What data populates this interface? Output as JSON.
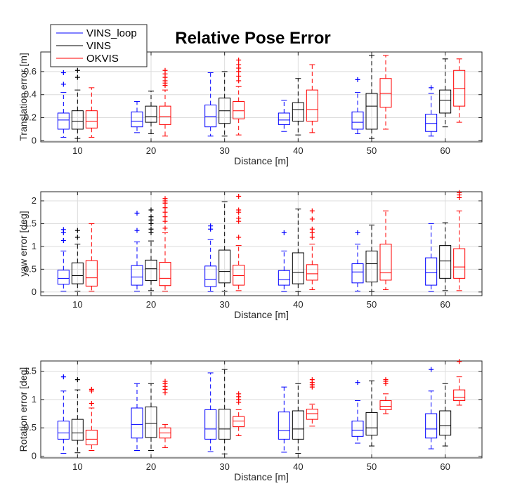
{
  "title": "Relative Pose Error",
  "colors": {
    "VINS_loop": "#0000ff",
    "VINS": "#000000",
    "OKVIS": "#ff0000"
  },
  "legend": [
    "VINS_loop",
    "VINS",
    "OKVIS"
  ],
  "chart_data": [
    {
      "type": "box",
      "ylabel": "Translation error [m]",
      "xlabel": "Distance [m]",
      "categories": [
        "10",
        "20",
        "30",
        "40",
        "50",
        "60"
      ],
      "ylim": [
        -0.01,
        0.77
      ],
      "yticks": [
        0,
        0.2,
        0.4,
        0.6
      ],
      "ytick_labels": [
        "0",
        "0.2",
        "0.4",
        "0.6"
      ],
      "series": [
        {
          "name": "VINS_loop",
          "boxes": [
            {
              "wlo": 0.03,
              "q1": 0.1,
              "med": 0.18,
              "q3": 0.24,
              "whi": 0.42,
              "out": [
                0.49,
                0.59
              ]
            },
            {
              "wlo": 0.07,
              "q1": 0.12,
              "med": 0.17,
              "q3": 0.25,
              "whi": 0.34,
              "out": []
            },
            {
              "wlo": 0.04,
              "q1": 0.12,
              "med": 0.21,
              "q3": 0.31,
              "whi": 0.59,
              "out": []
            },
            {
              "wlo": 0.08,
              "q1": 0.14,
              "med": 0.18,
              "q3": 0.24,
              "whi": 0.35,
              "out": []
            },
            {
              "wlo": 0.06,
              "q1": 0.1,
              "med": 0.16,
              "q3": 0.25,
              "whi": 0.42,
              "out": [
                0.53
              ]
            },
            {
              "wlo": 0.04,
              "q1": 0.08,
              "med": 0.15,
              "q3": 0.23,
              "whi": 0.41,
              "out": [
                0.46
              ]
            }
          ]
        },
        {
          "name": "VINS",
          "boxes": [
            {
              "wlo": 0.02,
              "q1": 0.1,
              "med": 0.17,
              "q3": 0.26,
              "whi": 0.44,
              "out": [
                0.55,
                0.61
              ]
            },
            {
              "wlo": 0.06,
              "q1": 0.16,
              "med": 0.21,
              "q3": 0.3,
              "whi": 0.43,
              "out": []
            },
            {
              "wlo": 0.04,
              "q1": 0.15,
              "med": 0.26,
              "q3": 0.37,
              "whi": 0.6,
              "out": []
            },
            {
              "wlo": 0.05,
              "q1": 0.17,
              "med": 0.27,
              "q3": 0.33,
              "whi": 0.54,
              "out": []
            },
            {
              "wlo": 0.02,
              "q1": 0.1,
              "med": 0.3,
              "q3": 0.41,
              "whi": 0.74,
              "out": []
            },
            {
              "wlo": 0.12,
              "q1": 0.24,
              "med": 0.35,
              "q3": 0.44,
              "whi": 0.71,
              "out": []
            }
          ]
        },
        {
          "name": "OKVIS",
          "boxes": [
            {
              "wlo": 0.03,
              "q1": 0.11,
              "med": 0.17,
              "q3": 0.26,
              "whi": 0.46,
              "out": []
            },
            {
              "wlo": 0.04,
              "q1": 0.14,
              "med": 0.21,
              "q3": 0.3,
              "whi": 0.44,
              "out": [
                0.48,
                0.5,
                0.52,
                0.55,
                0.58,
                0.61
              ]
            },
            {
              "wlo": 0.05,
              "q1": 0.19,
              "med": 0.26,
              "q3": 0.34,
              "whi": 0.47,
              "out": [
                0.52,
                0.56,
                0.6,
                0.63,
                0.66,
                0.7
              ]
            },
            {
              "wlo": 0.07,
              "q1": 0.17,
              "med": 0.27,
              "q3": 0.44,
              "whi": 0.66,
              "out": []
            },
            {
              "wlo": 0.1,
              "q1": 0.29,
              "med": 0.41,
              "q3": 0.54,
              "whi": 0.74,
              "out": []
            },
            {
              "wlo": 0.16,
              "q1": 0.3,
              "med": 0.45,
              "q3": 0.61,
              "whi": 0.71,
              "out": []
            }
          ]
        }
      ]
    },
    {
      "type": "box",
      "ylabel": "yaw error [deg]",
      "xlabel": "Distance [m]",
      "categories": [
        "10",
        "20",
        "30",
        "40",
        "50",
        "60"
      ],
      "ylim": [
        -0.08,
        2.2
      ],
      "yticks": [
        0,
        0.5,
        1,
        1.5,
        2
      ],
      "ytick_labels": [
        "0",
        "0.5",
        "1",
        "1.5",
        "2"
      ],
      "series": [
        {
          "name": "VINS_loop",
          "boxes": [
            {
              "wlo": 0.02,
              "q1": 0.17,
              "med": 0.3,
              "q3": 0.48,
              "whi": 0.9,
              "out": [
                1.13,
                1.3,
                1.37
              ]
            },
            {
              "wlo": 0.02,
              "q1": 0.15,
              "med": 0.33,
              "q3": 0.58,
              "whi": 1.1,
              "out": [
                1.35,
                1.73
              ]
            },
            {
              "wlo": 0.01,
              "q1": 0.12,
              "med": 0.28,
              "q3": 0.57,
              "whi": 1.15,
              "out": [
                1.38,
                1.45
              ]
            },
            {
              "wlo": 0.01,
              "q1": 0.15,
              "med": 0.27,
              "q3": 0.47,
              "whi": 0.9,
              "out": [
                1.3
              ]
            },
            {
              "wlo": 0.02,
              "q1": 0.2,
              "med": 0.44,
              "q3": 0.62,
              "whi": 1.05,
              "out": [
                1.3
              ]
            },
            {
              "wlo": 0.01,
              "q1": 0.15,
              "med": 0.42,
              "q3": 0.75,
              "whi": 1.5,
              "out": []
            }
          ]
        },
        {
          "name": "VINS",
          "boxes": [
            {
              "wlo": 0.02,
              "q1": 0.18,
              "med": 0.36,
              "q3": 0.64,
              "whi": 1.05,
              "out": [
                1.2,
                1.35
              ]
            },
            {
              "wlo": 0.03,
              "q1": 0.25,
              "med": 0.51,
              "q3": 0.7,
              "whi": 1.12,
              "out": [
                1.3,
                1.38,
                1.5,
                1.58,
                1.65,
                1.8
              ]
            },
            {
              "wlo": 0.02,
              "q1": 0.2,
              "med": 0.45,
              "q3": 0.92,
              "whi": 1.98,
              "out": []
            },
            {
              "wlo": 0.01,
              "q1": 0.18,
              "med": 0.43,
              "q3": 0.86,
              "whi": 1.82,
              "out": []
            },
            {
              "wlo": 0.01,
              "q1": 0.22,
              "med": 0.62,
              "q3": 0.9,
              "whi": 1.47,
              "out": []
            },
            {
              "wlo": 0.03,
              "q1": 0.3,
              "med": 0.68,
              "q3": 1.02,
              "whi": 1.52,
              "out": []
            }
          ]
        },
        {
          "name": "OKVIS",
          "boxes": [
            {
              "wlo": 0.02,
              "q1": 0.13,
              "med": 0.31,
              "q3": 0.69,
              "whi": 1.5,
              "out": []
            },
            {
              "wlo": 0.02,
              "q1": 0.14,
              "med": 0.3,
              "q3": 0.65,
              "whi": 1.3,
              "out": [
                1.4,
                1.55,
                1.65,
                1.75,
                1.85,
                1.95,
                2.0,
                2.05
              ]
            },
            {
              "wlo": 0.03,
              "q1": 0.15,
              "med": 0.36,
              "q3": 0.59,
              "whi": 1.02,
              "out": [
                1.2,
                1.55,
                1.62,
                1.75,
                1.8,
                2.1
              ]
            },
            {
              "wlo": 0.05,
              "q1": 0.26,
              "med": 0.4,
              "q3": 0.6,
              "whi": 1.05,
              "out": [
                1.2,
                1.3,
                1.38,
                1.6,
                1.78
              ]
            },
            {
              "wlo": 0.05,
              "q1": 0.26,
              "med": 0.42,
              "q3": 1.05,
              "whi": 1.78,
              "out": []
            },
            {
              "wlo": 0.03,
              "q1": 0.3,
              "med": 0.55,
              "q3": 0.95,
              "whi": 1.78,
              "out": [
                2.07,
                2.13,
                2.18
              ]
            }
          ]
        }
      ]
    },
    {
      "type": "box",
      "ylabel": "Rotation error [deg]",
      "xlabel": "Distance [m]",
      "categories": [
        "10",
        "20",
        "30",
        "40",
        "50",
        "60"
      ],
      "ylim": [
        -0.03,
        1.68
      ],
      "yticks": [
        0,
        0.5,
        1,
        1.5
      ],
      "ytick_labels": [
        "0",
        "0.5",
        "1",
        "1.5"
      ],
      "series": [
        {
          "name": "VINS_loop",
          "boxes": [
            {
              "wlo": 0.05,
              "q1": 0.3,
              "med": 0.41,
              "q3": 0.62,
              "whi": 1.15,
              "out": [
                1.4
              ]
            },
            {
              "wlo": 0.1,
              "q1": 0.32,
              "med": 0.56,
              "q3": 0.85,
              "whi": 1.28,
              "out": []
            },
            {
              "wlo": 0.08,
              "q1": 0.3,
              "med": 0.48,
              "q3": 0.82,
              "whi": 1.47,
              "out": []
            },
            {
              "wlo": 0.07,
              "q1": 0.3,
              "med": 0.45,
              "q3": 0.78,
              "whi": 1.22,
              "out": []
            },
            {
              "wlo": 0.23,
              "q1": 0.35,
              "med": 0.46,
              "q3": 0.62,
              "whi": 0.98,
              "out": [
                1.3
              ]
            },
            {
              "wlo": 0.13,
              "q1": 0.32,
              "med": 0.48,
              "q3": 0.75,
              "whi": 1.15,
              "out": [
                1.53
              ]
            }
          ]
        },
        {
          "name": "VINS",
          "boxes": [
            {
              "wlo": 0.06,
              "q1": 0.28,
              "med": 0.41,
              "q3": 0.65,
              "whi": 1.17,
              "out": [
                1.35
              ]
            },
            {
              "wlo": 0.1,
              "q1": 0.33,
              "med": 0.58,
              "q3": 0.87,
              "whi": 1.28,
              "out": []
            },
            {
              "wlo": 0.04,
              "q1": 0.3,
              "med": 0.48,
              "q3": 0.83,
              "whi": 1.53,
              "out": []
            },
            {
              "wlo": 0.05,
              "q1": 0.3,
              "med": 0.48,
              "q3": 0.8,
              "whi": 1.28,
              "out": []
            },
            {
              "wlo": 0.18,
              "q1": 0.37,
              "med": 0.5,
              "q3": 0.77,
              "whi": 1.33,
              "out": []
            },
            {
              "wlo": 0.18,
              "q1": 0.37,
              "med": 0.54,
              "q3": 0.8,
              "whi": 1.28,
              "out": []
            }
          ]
        },
        {
          "name": "OKVIS",
          "boxes": [
            {
              "wlo": 0.1,
              "q1": 0.2,
              "med": 0.3,
              "q3": 0.46,
              "whi": 0.85,
              "out": [
                0.93,
                1.15,
                1.18
              ]
            },
            {
              "wlo": 0.15,
              "q1": 0.32,
              "med": 0.41,
              "q3": 0.5,
              "whi": 0.56,
              "out": [
                1.12,
                1.18,
                1.23,
                1.28,
                1.32
              ]
            },
            {
              "wlo": 0.36,
              "q1": 0.52,
              "med": 0.62,
              "q3": 0.7,
              "whi": 0.82,
              "out": [
                0.95,
                1.0,
                1.05,
                1.1
              ]
            },
            {
              "wlo": 0.53,
              "q1": 0.65,
              "med": 0.75,
              "q3": 0.83,
              "whi": 0.92,
              "out": [
                1.22,
                1.26,
                1.3,
                1.35
              ]
            },
            {
              "wlo": 0.75,
              "q1": 0.82,
              "med": 0.88,
              "q3": 0.98,
              "whi": 1.1,
              "out": [
                1.28,
                1.32,
                1.35
              ]
            },
            {
              "wlo": 0.9,
              "q1": 0.98,
              "med": 1.04,
              "q3": 1.17,
              "whi": 1.4,
              "out": [
                1.67
              ]
            }
          ]
        }
      ]
    }
  ]
}
